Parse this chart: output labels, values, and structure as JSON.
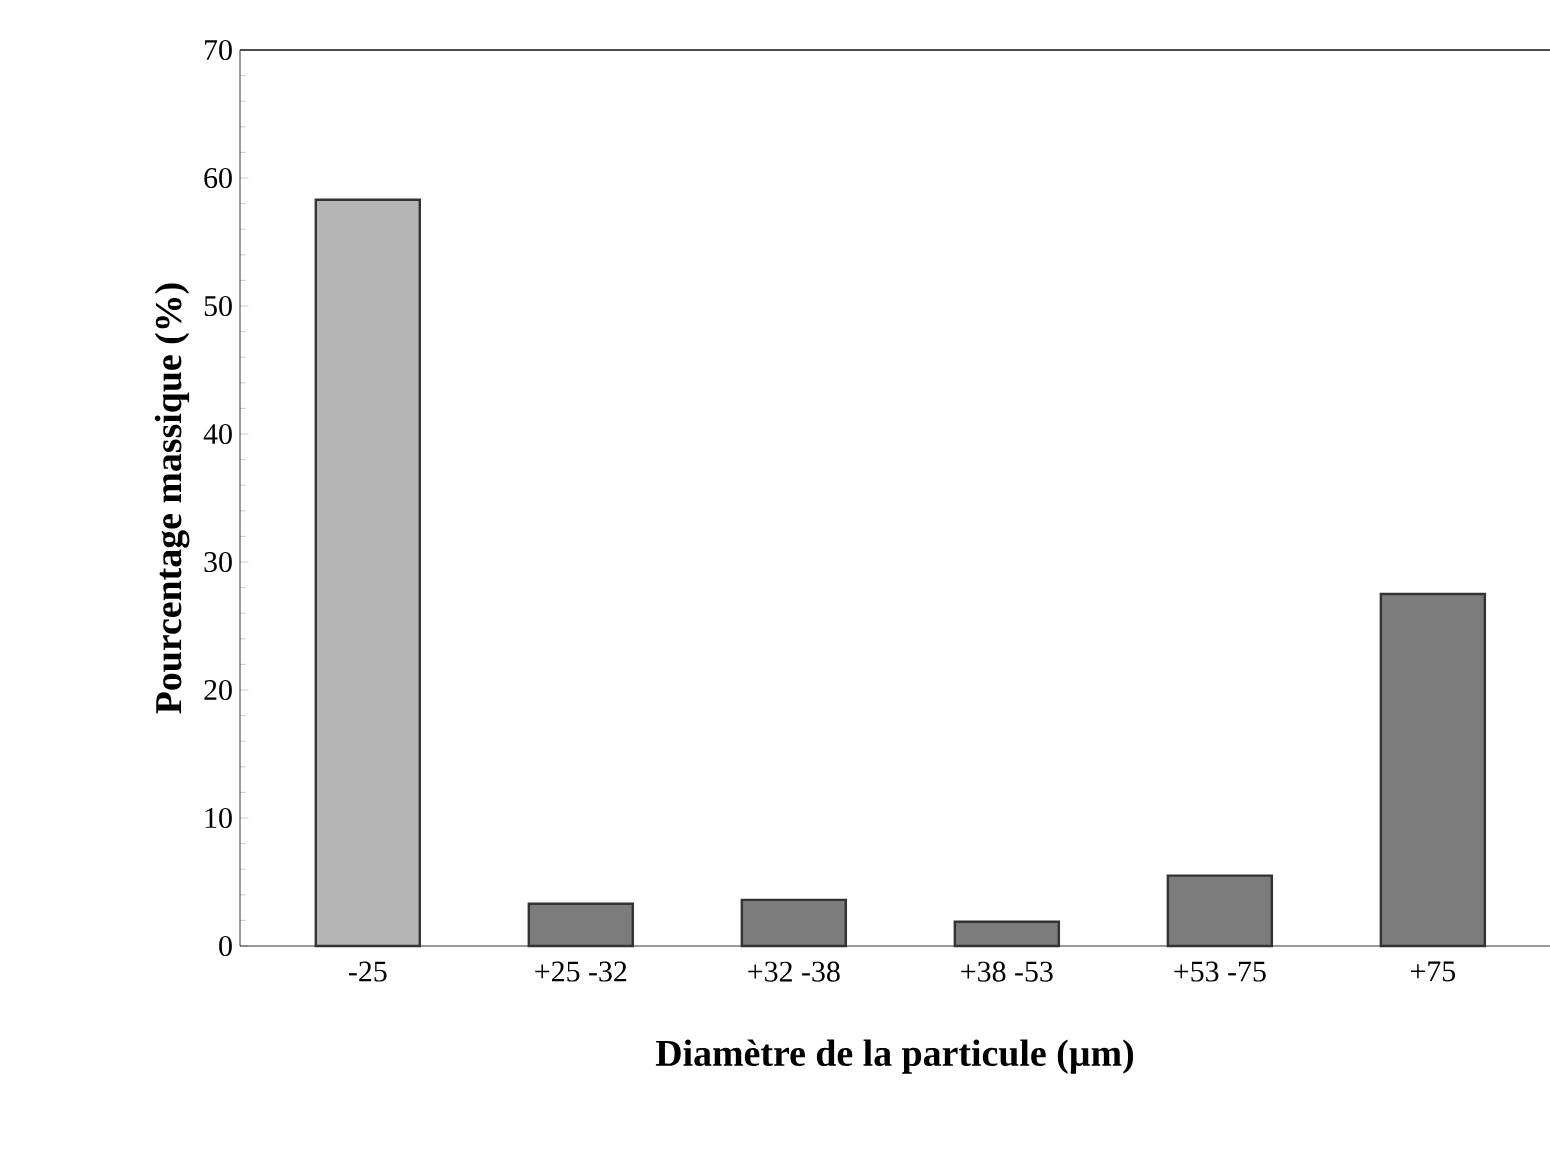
{
  "chart_data": {
    "type": "bar",
    "xlabel": "Diamètre de la particule (µm)",
    "ylabel": "Pourcentage massique (%)",
    "categories": [
      "-25",
      "+25 -32",
      "+32 -38",
      "+38 -53",
      "+53 -75",
      "+75"
    ],
    "values": [
      58.3,
      3.3,
      3.6,
      1.9,
      5.5,
      27.5
    ],
    "colors": [
      "#b4b4b4",
      "#7c7c7c",
      "#7c7c7c",
      "#7c7c7c",
      "#7c7c7c",
      "#7c7c7c"
    ],
    "ylim": [
      0,
      70
    ],
    "yticks": [
      0,
      10,
      20,
      30,
      40,
      50,
      60,
      70
    ]
  }
}
